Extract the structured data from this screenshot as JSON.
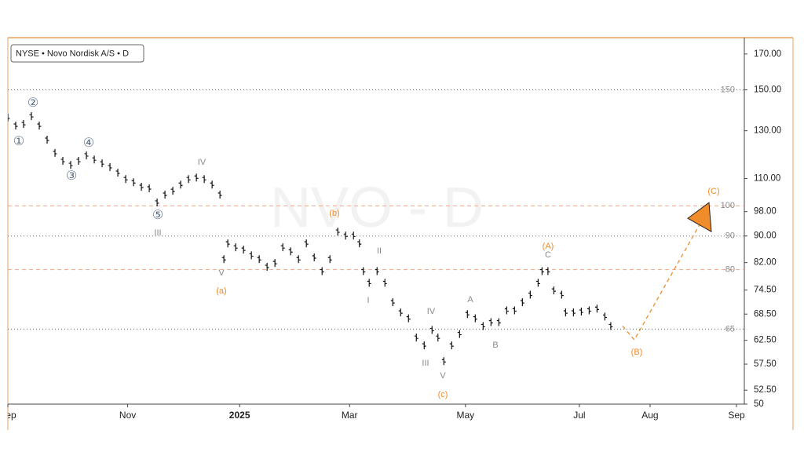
{
  "chart_data": {
    "type": "ohlc",
    "legend": "NYSE • Novo Nordisk A/S • D",
    "watermark": "NVO - D",
    "log_scale": true,
    "ylim": [
      50,
      180
    ],
    "yticks": [
      {
        "value": 170,
        "label": "170.00"
      },
      {
        "value": 150,
        "label": "150.00"
      },
      {
        "value": 130,
        "label": "130.00"
      },
      {
        "value": 110,
        "label": "110.00"
      },
      {
        "value": 98,
        "label": "98.00"
      },
      {
        "value": 90,
        "label": "90.00"
      },
      {
        "value": 82,
        "label": "82.00"
      },
      {
        "value": 74.5,
        "label": "74.50"
      },
      {
        "value": 68.5,
        "label": "68.50"
      },
      {
        "value": 62.5,
        "label": "62.50"
      },
      {
        "value": 57.5,
        "label": "57.50"
      },
      {
        "value": 52.5,
        "label": "52.50"
      },
      50
    ],
    "xlim": [
      0,
      375
    ],
    "xticks": [
      {
        "value": 0,
        "label": "Sep"
      },
      {
        "value": 61,
        "label": "Nov"
      },
      {
        "value": 118,
        "label": "2025"
      },
      {
        "value": 174,
        "label": "Mar"
      },
      {
        "value": 233,
        "label": "May"
      },
      {
        "value": 291,
        "label": "Jul"
      },
      {
        "value": 327,
        "label": "Aug"
      },
      {
        "value": 371,
        "label": "Sep"
      }
    ],
    "levels": [
      {
        "value": 150,
        "style": "dotted",
        "color": "#666666"
      },
      {
        "value": 100,
        "style": "dashed",
        "color": "#f4a582"
      },
      {
        "value": 90,
        "style": "dotted",
        "color": "#666666"
      },
      {
        "value": 80,
        "style": "dashed",
        "color": "#f4a582"
      },
      {
        "value": 65,
        "style": "dotted",
        "color": "#666666"
      }
    ],
    "series": [
      {
        "color": "#111111",
        "x": [
          0,
          4,
          8,
          12,
          16,
          20,
          24,
          28,
          32,
          36,
          40,
          44,
          48,
          52,
          56,
          60,
          64,
          68,
          72,
          76,
          80,
          84,
          88,
          92,
          96,
          100,
          104,
          108,
          110,
          112,
          116,
          120,
          124,
          128,
          132,
          136,
          140,
          144,
          148,
          152,
          156,
          160,
          164,
          168,
          172,
          176,
          179,
          181,
          184,
          188,
          192,
          196,
          200,
          204,
          208,
          212,
          216,
          219,
          222,
          226,
          230,
          234,
          238,
          242,
          246,
          250,
          254,
          258,
          262,
          266,
          270,
          272,
          275,
          278,
          282,
          284,
          288,
          292,
          296,
          300,
          304,
          307
        ],
        "values": [
          136.1,
          132.4,
          133.1,
          136.8,
          132.4,
          126.0,
          120.3,
          117.0,
          115.4,
          117.0,
          119.3,
          117.6,
          116.0,
          114.5,
          112.3,
          109.8,
          108.6,
          106.9,
          106.3,
          101.2,
          104.0,
          105.4,
          107.7,
          109.8,
          110.4,
          109.8,
          107.7,
          104.0,
          83.0,
          87.7,
          86.5,
          85.8,
          84.1,
          83.0,
          80.8,
          81.9,
          86.5,
          85.3,
          83.0,
          87.7,
          83.5,
          79.6,
          83.0,
          91.4,
          90.1,
          90.1,
          87.7,
          79.6,
          76.4,
          79.6,
          76.4,
          71.4,
          68.9,
          67.5,
          63.1,
          61.4,
          64.8,
          63.1,
          58.1,
          61.4,
          63.9,
          68.5,
          67.5,
          65.7,
          66.6,
          66.6,
          69.4,
          69.4,
          71.4,
          73.3,
          76.4,
          79.6,
          79.6,
          74.4,
          73.3,
          68.9,
          68.9,
          69.1,
          69.4,
          69.8,
          67.9,
          65.7
        ]
      }
    ],
    "projection": {
      "color": "#f08c2a",
      "x": [
        313,
        319,
        357
      ],
      "values": [
        65.7,
        62.6,
        99.2
      ]
    },
    "annotations": [
      {
        "text": "①",
        "color": "#5a6e85"
      },
      {
        "text": "②",
        "color": "#5a6e85"
      },
      {
        "text": "③",
        "color": "#5a6e85"
      },
      {
        "text": "④",
        "color": "#5a6e85"
      },
      {
        "text": "⑤",
        "color": "#5a6e85"
      },
      {
        "text": "IV",
        "color": "#888888"
      },
      {
        "text": "III",
        "color": "#888888"
      },
      {
        "text": "V",
        "color": "#888888"
      },
      {
        "text": "(a)",
        "color": "#f08c2a"
      },
      {
        "text": "(b)",
        "color": "#f08c2a"
      },
      {
        "text": "II",
        "color": "#888888"
      },
      {
        "text": "I",
        "color": "#888888"
      },
      {
        "text": "IV",
        "color": "#888888"
      },
      {
        "text": "III",
        "color": "#888888"
      },
      {
        "text": "V",
        "color": "#888888"
      },
      {
        "text": "(c)",
        "color": "#f08c2a"
      },
      {
        "text": "A",
        "color": "#888888"
      },
      {
        "text": "B",
        "color": "#888888"
      },
      {
        "text": "(A)",
        "color": "#f08c2a"
      },
      {
        "text": "C",
        "color": "#888888"
      },
      {
        "text": "(B)",
        "color": "#f08c2a"
      },
      {
        "text": "(C)",
        "color": "#f08c2a"
      }
    ]
  }
}
